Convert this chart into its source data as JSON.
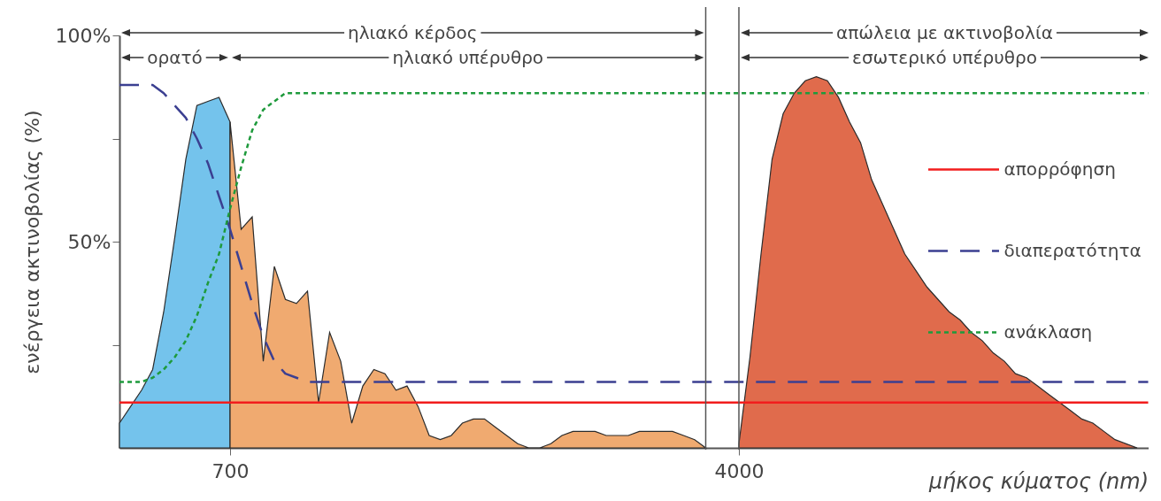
{
  "chart_data": {
    "type": "area",
    "ylabel": "ενέργεια ακτινοβολίας (%)",
    "xlabel": "μήκος κύματος (nm)",
    "legend": "right",
    "categories": [
      null,
      null,
      null,
      null,
      null,
      null,
      null,
      null,
      null,
      null,
      "700",
      null,
      null,
      null,
      null,
      null,
      null,
      null,
      null,
      null,
      null,
      null,
      null,
      null,
      null,
      null,
      null,
      null,
      null,
      null,
      null,
      null,
      null,
      null,
      null,
      null,
      null,
      null,
      null,
      null,
      null,
      null,
      null,
      null,
      null,
      null,
      null,
      null,
      null,
      null,
      null,
      null,
      null,
      null,
      null,
      null,
      "4000",
      null,
      null,
      null,
      null,
      null,
      null,
      null,
      null,
      null,
      null,
      null,
      null,
      null,
      null,
      null,
      null,
      null,
      null,
      null,
      null,
      null,
      null,
      null,
      null,
      null,
      null,
      null,
      null,
      null,
      null,
      null,
      null,
      null,
      null,
      null,
      null,
      null
    ],
    "ylim": [
      0,
      100
    ],
    "yticks": [
      {
        "value": 25,
        "label": null
      },
      {
        "value": 50,
        "label": "50%"
      },
      {
        "value": 75,
        "label": null
      },
      {
        "value": 100,
        "label": "100%"
      }
    ],
    "annotations": [
      "ηλιακό κέρδος",
      "ορατό",
      "ηλιακό υπέρυθρο",
      "απώλεια με ακτινοβολία",
      "εσωτερικό υπέρυθρο"
    ],
    "series": [
      {
        "type": "area",
        "color": "#74c3ec",
        "values": [
          6,
          10,
          14,
          19,
          33,
          51,
          70,
          83,
          84,
          85,
          79,
          null,
          null,
          null,
          null,
          null,
          null,
          null,
          null,
          null,
          null,
          null,
          null,
          null,
          null,
          null,
          null,
          null,
          null,
          null,
          null,
          null,
          null,
          null,
          null,
          null,
          null,
          null,
          null,
          null,
          null,
          null,
          null,
          null,
          null,
          null,
          null,
          null,
          null,
          null,
          null,
          null,
          null,
          null,
          null,
          null,
          null,
          null,
          null,
          null,
          null,
          null,
          null,
          null,
          null,
          null,
          null,
          null,
          null,
          null,
          null,
          null,
          null,
          null,
          null,
          null,
          null,
          null,
          null,
          null,
          null,
          null,
          null,
          null,
          null,
          null,
          null,
          null,
          null,
          null,
          null,
          null,
          null,
          null
        ]
      },
      {
        "type": "area",
        "color": "#f0aa70",
        "values": [
          null,
          null,
          null,
          null,
          null,
          null,
          null,
          null,
          null,
          null,
          79,
          53,
          56,
          21,
          44,
          36,
          35,
          38,
          11,
          28,
          21,
          6,
          15,
          19,
          18,
          14,
          15,
          10,
          3,
          2,
          3,
          6,
          7,
          7,
          5,
          3,
          1,
          0,
          0,
          1,
          3,
          4,
          4,
          4,
          3,
          3,
          3,
          4,
          4,
          4,
          4,
          3,
          2,
          0,
          null,
          null,
          null,
          null,
          null,
          null,
          null,
          null,
          null,
          null,
          null,
          null,
          null,
          null,
          null,
          null,
          null,
          null,
          null,
          null,
          null,
          null,
          null,
          null,
          null,
          null,
          null,
          null,
          null,
          null,
          null,
          null,
          null,
          null,
          null,
          null,
          null,
          null,
          null,
          null
        ]
      },
      {
        "type": "area",
        "color": "#e06b4c",
        "values": [
          null,
          null,
          null,
          null,
          null,
          null,
          null,
          null,
          null,
          null,
          null,
          null,
          null,
          null,
          null,
          null,
          null,
          null,
          null,
          null,
          null,
          null,
          null,
          null,
          null,
          null,
          null,
          null,
          null,
          null,
          null,
          null,
          null,
          null,
          null,
          null,
          null,
          null,
          null,
          null,
          null,
          null,
          null,
          null,
          null,
          null,
          null,
          null,
          null,
          null,
          null,
          null,
          null,
          null,
          null,
          null,
          1,
          22,
          47,
          70,
          81,
          86,
          89,
          90,
          89,
          85,
          79,
          74,
          65,
          59,
          53,
          47,
          43,
          39,
          36,
          33,
          31,
          28,
          26,
          23,
          21,
          18,
          17,
          15,
          13,
          11,
          9,
          7,
          6,
          4,
          2,
          1,
          0,
          null
        ]
      },
      {
        "type": "line",
        "name": "απορρόφηση",
        "color": "#f21d1d",
        "line_style": "solid",
        "values": [
          11,
          11,
          11,
          11,
          11,
          11,
          11,
          11,
          11,
          11,
          11,
          11,
          11,
          11,
          11,
          11,
          11,
          11,
          11,
          11,
          11,
          11,
          11,
          11,
          11,
          11,
          11,
          11,
          11,
          11,
          11,
          11,
          11,
          11,
          11,
          11,
          11,
          11,
          11,
          11,
          11,
          11,
          11,
          11,
          11,
          11,
          11,
          11,
          11,
          11,
          11,
          11,
          11,
          11,
          11,
          11,
          11,
          11,
          11,
          11,
          11,
          11,
          11,
          11,
          11,
          11,
          11,
          11,
          11,
          11,
          11,
          11,
          11,
          11,
          11,
          11,
          11,
          11,
          11,
          11,
          11,
          11,
          11,
          11,
          11,
          11,
          11,
          11,
          11,
          11,
          11,
          11,
          11,
          11
        ]
      },
      {
        "type": "line",
        "name": "διαπερατότητα",
        "color": "#3b3f91",
        "line_style": "dashed",
        "values": [
          88,
          88,
          88,
          88,
          86,
          83,
          80,
          75,
          69,
          61,
          53,
          44,
          35,
          27,
          21,
          18,
          17,
          16,
          16,
          16,
          16,
          16,
          16,
          16,
          16,
          16,
          16,
          16,
          16,
          16,
          16,
          16,
          16,
          16,
          16,
          16,
          16,
          16,
          16,
          16,
          16,
          16,
          16,
          16,
          16,
          16,
          16,
          16,
          16,
          16,
          16,
          16,
          16,
          16,
          16,
          16,
          16,
          16,
          16,
          16,
          16,
          16,
          16,
          16,
          16,
          16,
          16,
          16,
          16,
          16,
          16,
          16,
          16,
          16,
          16,
          16,
          16,
          16,
          16,
          16,
          16,
          16,
          16,
          16,
          16,
          16,
          16,
          16,
          16,
          16,
          16,
          16,
          16,
          16
        ]
      },
      {
        "type": "line",
        "name": "ανάκλαση",
        "color": "#1e9a3c",
        "line_style": "dotted",
        "values": [
          16,
          16,
          16,
          17,
          19,
          22,
          26,
          32,
          40,
          47,
          58,
          68,
          77,
          82,
          84,
          86,
          86,
          86,
          86,
          86,
          86,
          86,
          86,
          86,
          86,
          86,
          86,
          86,
          86,
          86,
          86,
          86,
          86,
          86,
          86,
          86,
          86,
          86,
          86,
          86,
          86,
          86,
          86,
          86,
          86,
          86,
          86,
          86,
          86,
          86,
          86,
          86,
          86,
          86,
          86,
          86,
          86,
          86,
          86,
          86,
          86,
          86,
          86,
          86,
          86,
          86,
          86,
          86,
          86,
          86,
          86,
          86,
          86,
          86,
          86,
          86,
          86,
          86,
          86,
          86,
          86,
          86,
          86,
          86,
          86,
          86,
          86,
          86,
          86,
          86,
          86,
          86,
          86,
          86
        ]
      }
    ]
  }
}
